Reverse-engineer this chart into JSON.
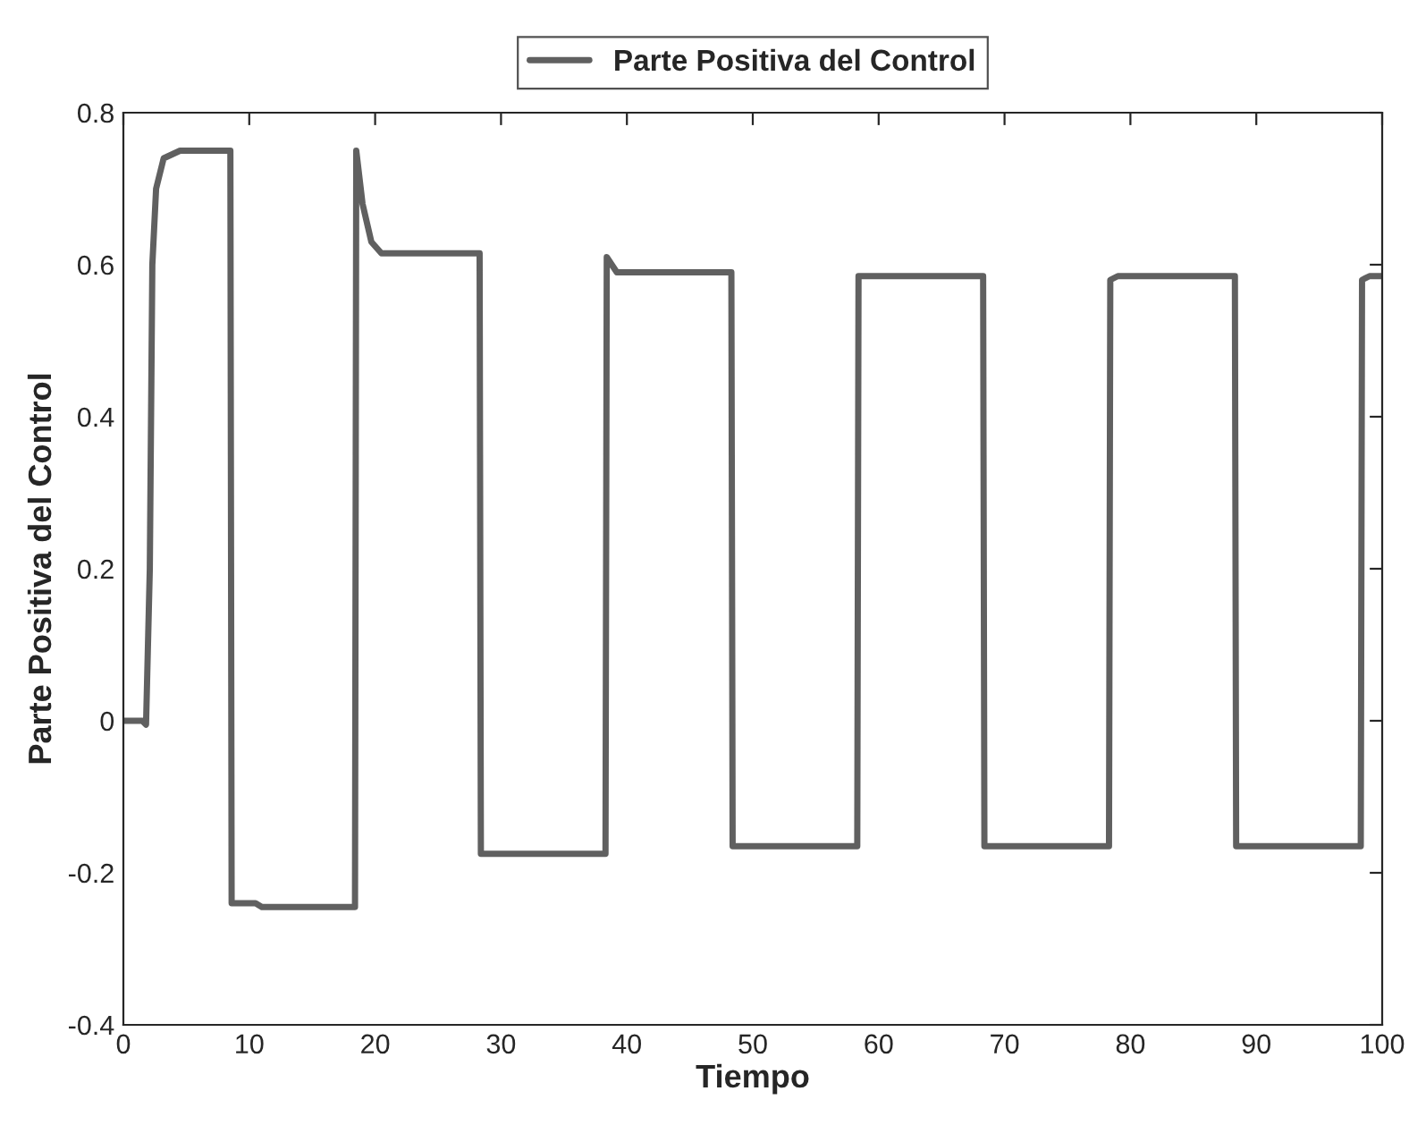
{
  "chart_data": {
    "type": "line",
    "xlabel": "Tiempo",
    "ylabel": "Parte Positiva del Control",
    "xlim": [
      0,
      100
    ],
    "xticks": [
      0,
      10,
      20,
      30,
      40,
      50,
      60,
      70,
      80,
      90,
      100
    ],
    "ylim": [
      -0.4,
      0.8
    ],
    "yticks": [
      -0.4,
      -0.2,
      0,
      0.2,
      0.4,
      0.6,
      0.8
    ],
    "grid": false,
    "legend": "top",
    "marker": "none",
    "line_style": "solid",
    "series": [
      {
        "name": "Parte Positiva del Control",
        "color": "#606060",
        "x": [
          0,
          1.5,
          1.8,
          2.1,
          2.3,
          2.6,
          3.2,
          4.5,
          8.5,
          8.6,
          10.5,
          11,
          18.4,
          18.5,
          19,
          19.7,
          20.5,
          28.3,
          28.4,
          38.3,
          38.4,
          39.2,
          48.3,
          48.4,
          58.3,
          58.4,
          68.3,
          68.4,
          78.3,
          78.4,
          79,
          88.3,
          88.4,
          98.3,
          98.4,
          99,
          100
        ],
        "values": [
          0,
          0,
          -0.005,
          0.2,
          0.6,
          0.7,
          0.74,
          0.75,
          0.75,
          -0.24,
          -0.24,
          -0.245,
          -0.245,
          0.75,
          0.68,
          0.63,
          0.615,
          0.615,
          -0.175,
          -0.175,
          0.61,
          0.59,
          0.59,
          -0.165,
          -0.165,
          0.585,
          0.585,
          -0.165,
          -0.165,
          0.58,
          0.585,
          0.585,
          -0.165,
          -0.165,
          0.58,
          0.585,
          0.585
        ]
      }
    ]
  }
}
